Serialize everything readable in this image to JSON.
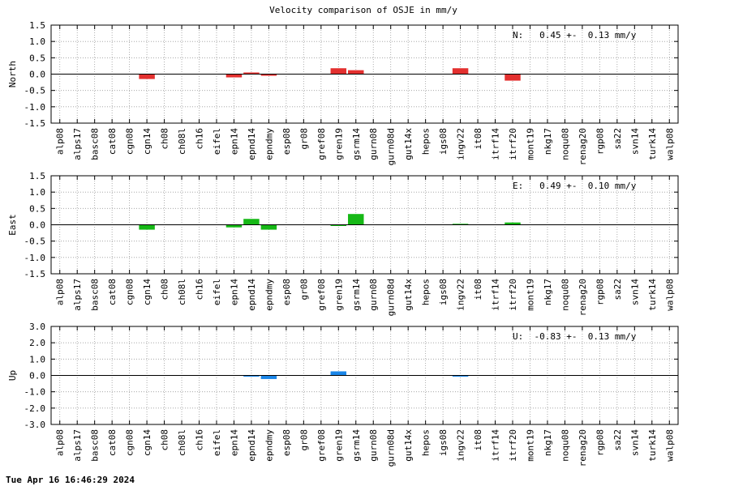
{
  "footer": {
    "timestamp": "Tue Apr 16 16:46:29 2024"
  },
  "chart_data": {
    "type": "bar",
    "title": "Velocity comparison of OSJE in mm/y",
    "categories": [
      "alp08",
      "alps17",
      "basc08",
      "cat08",
      "cgn08",
      "cgn14",
      "ch08",
      "ch08l",
      "ch16",
      "eifel",
      "epn14",
      "epnd14",
      "epndmy",
      "esp08",
      "gr08",
      "gref08",
      "gren19",
      "gsrm14",
      "gurn08",
      "gurn08d",
      "gut14x",
      "hepos",
      "igs08",
      "ingv22",
      "it08",
      "itrf14",
      "itrf20",
      "mont19",
      "nkg17",
      "noqu08",
      "renag20",
      "rgp08",
      "sa22",
      "svn14",
      "turk14",
      "walp08"
    ],
    "panels": [
      {
        "ylabel": "North",
        "ylim": [
          -1.5,
          1.5
        ],
        "yticks": [
          "1.5",
          "1.0",
          "0.5",
          "0.0",
          "-0.5",
          "-1.0",
          "-1.5"
        ],
        "ytick_values": [
          1.5,
          1.0,
          0.5,
          0.0,
          -0.5,
          -1.0,
          -1.5
        ],
        "color": "#e3302f",
        "annotation": "N:   0.45 +-  0.13 mm/y",
        "values": [
          0,
          0,
          0,
          0,
          0,
          -0.15,
          0,
          0,
          0,
          0,
          -0.1,
          0.05,
          -0.05,
          0,
          0,
          0,
          0.18,
          0.12,
          0,
          0,
          0,
          0,
          0,
          0.18,
          0,
          0,
          -0.2,
          0,
          0,
          0,
          0,
          0,
          0,
          0,
          0,
          0
        ]
      },
      {
        "ylabel": "East",
        "ylim": [
          -1.5,
          1.5
        ],
        "yticks": [
          "1.5",
          "1.0",
          "0.5",
          "0.0",
          "-0.5",
          "-1.0",
          "-1.5"
        ],
        "ytick_values": [
          1.5,
          1.0,
          0.5,
          0.0,
          -0.5,
          -1.0,
          -1.5
        ],
        "color": "#16b816",
        "annotation": "E:   0.49 +-  0.10 mm/y",
        "values": [
          0,
          0,
          0,
          0,
          0,
          -0.15,
          0,
          0,
          0,
          0,
          -0.08,
          0.18,
          -0.15,
          0,
          0,
          0,
          -0.02,
          0.33,
          0,
          0,
          0,
          0,
          0,
          0.03,
          0,
          0,
          0.07,
          0,
          0,
          0,
          0,
          0,
          0,
          0,
          0,
          0
        ]
      },
      {
        "ylabel": "Up",
        "ylim": [
          -3.0,
          3.0
        ],
        "yticks": [
          "3.0",
          "2.0",
          "1.0",
          "0.0",
          "-1.0",
          "-2.0",
          "-3.0"
        ],
        "ytick_values": [
          3.0,
          2.0,
          1.0,
          0.0,
          -1.0,
          -2.0,
          -3.0
        ],
        "color": "#1a86e8",
        "annotation": "U:  -0.83 +-  0.13 mm/y",
        "values": [
          0,
          0,
          0,
          0,
          0,
          0,
          0,
          0,
          0,
          0,
          0,
          -0.05,
          -0.22,
          0,
          0,
          0,
          0.25,
          0,
          0,
          0,
          0,
          0,
          0,
          -0.05,
          0,
          0,
          0,
          0,
          0,
          0,
          0,
          0,
          0,
          0,
          0,
          0
        ]
      }
    ],
    "grid": true
  }
}
